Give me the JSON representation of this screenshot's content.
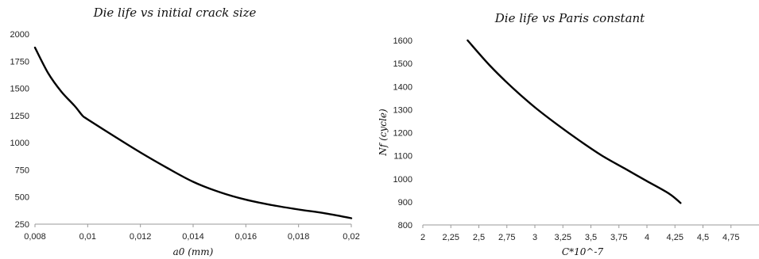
{
  "chart_data": [
    {
      "type": "line",
      "title": "Die life vs initial crack size",
      "xlabel": "a0 (mm)",
      "ylabel": "",
      "xlim": [
        0.008,
        0.02
      ],
      "ylim": [
        250,
        2000
      ],
      "x_ticks": [
        "0,008",
        "0,01",
        "0,012",
        "0,014",
        "0,016",
        "0,018",
        "0,02"
      ],
      "y_ticks": [
        "250",
        "500",
        "750",
        "1000",
        "1250",
        "1500",
        "1750",
        "2000"
      ],
      "grid": false,
      "series": [
        {
          "x": [
            0.008,
            0.0085,
            0.009,
            0.0095,
            0.0098,
            0.01,
            0.011,
            0.012,
            0.013,
            0.014,
            0.015,
            0.016,
            0.017,
            0.018,
            0.019,
            0.02
          ],
          "y": [
            1875,
            1640,
            1470,
            1340,
            1250,
            1215,
            1060,
            910,
            770,
            640,
            545,
            475,
            425,
            385,
            350,
            305
          ]
        }
      ]
    },
    {
      "type": "line",
      "title": "Die life vs Paris constant",
      "xlabel": "C*10^-7",
      "ylabel": "Nf (cycle)",
      "xlim": [
        2,
        5
      ],
      "ylim": [
        800,
        1650
      ],
      "x_ticks": [
        "2",
        "2,25",
        "2,5",
        "2,75",
        "3",
        "3,25",
        "3,5",
        "3,75",
        "4",
        "4,25",
        "4,5",
        "4,75"
      ],
      "y_ticks": [
        "800",
        "900",
        "1000",
        "1100",
        "1200",
        "1300",
        "1400",
        "1500",
        "1600"
      ],
      "grid": false,
      "series": [
        {
          "x": [
            2.4,
            2.6,
            2.8,
            3.0,
            3.2,
            3.4,
            3.6,
            3.8,
            4.0,
            4.2,
            4.3
          ],
          "y": [
            1600,
            1490,
            1395,
            1310,
            1235,
            1165,
            1100,
            1045,
            990,
            935,
            895
          ]
        }
      ]
    }
  ]
}
